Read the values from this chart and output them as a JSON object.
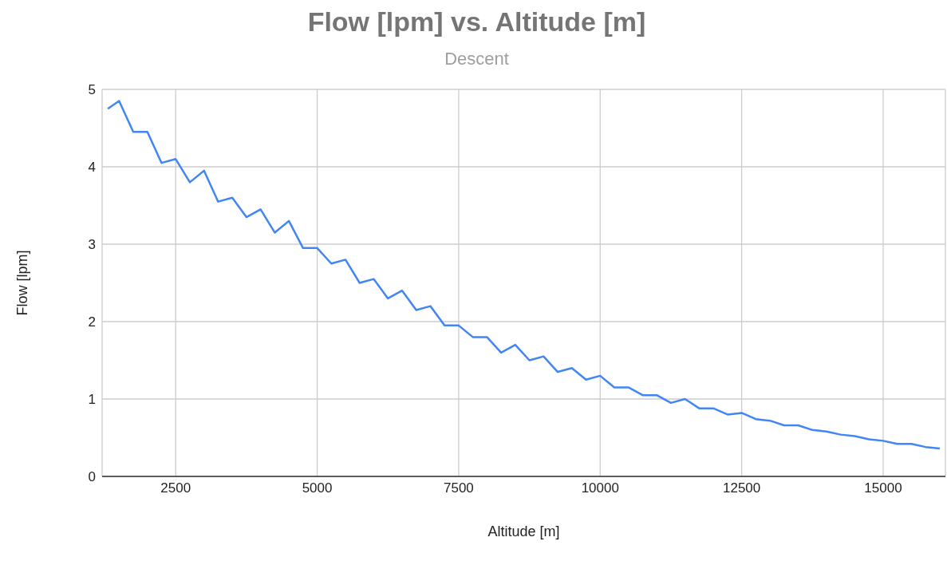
{
  "chart_data": {
    "type": "line",
    "title": "Flow [lpm] vs. Altitude [m]",
    "subtitle": "Descent",
    "xlabel": "Altitude [m]",
    "ylabel": "Flow [lpm]",
    "x": [
      1300,
      1500,
      1750,
      2000,
      2250,
      2500,
      2750,
      3000,
      3250,
      3500,
      3750,
      4000,
      4250,
      4500,
      4750,
      5000,
      5250,
      5500,
      5750,
      6000,
      6250,
      6500,
      6750,
      7000,
      7250,
      7500,
      7750,
      8000,
      8250,
      8500,
      8750,
      9000,
      9250,
      9500,
      9750,
      10000,
      10250,
      10500,
      10750,
      11000,
      11250,
      11500,
      11750,
      12000,
      12250,
      12500,
      12750,
      13000,
      13250,
      13500,
      13750,
      14000,
      14250,
      14500,
      14750,
      15000,
      15250,
      15500,
      15750,
      16000
    ],
    "series": [
      {
        "color": "#4285f4",
        "values": [
          4.75,
          4.85,
          4.45,
          4.45,
          4.05,
          4.1,
          3.8,
          3.95,
          3.55,
          3.6,
          3.35,
          3.45,
          3.15,
          3.3,
          2.95,
          2.95,
          2.75,
          2.8,
          2.5,
          2.55,
          2.3,
          2.4,
          2.15,
          2.2,
          1.95,
          1.95,
          1.8,
          1.8,
          1.6,
          1.7,
          1.5,
          1.55,
          1.35,
          1.4,
          1.25,
          1.3,
          1.15,
          1.15,
          1.05,
          1.05,
          0.95,
          1.0,
          0.88,
          0.88,
          0.8,
          0.82,
          0.74,
          0.72,
          0.66,
          0.66,
          0.6,
          0.58,
          0.54,
          0.52,
          0.48,
          0.46,
          0.42,
          0.42,
          0.38,
          0.36
        ]
      }
    ],
    "xlim": [
      1200,
      16100
    ],
    "xticks": [
      2500,
      5000,
      7500,
      10000,
      12500,
      15000
    ],
    "ylim": [
      0,
      5
    ],
    "yticks": [
      0,
      1,
      2,
      3,
      4,
      5
    ],
    "grid": true,
    "legend": false,
    "marker": "none",
    "line_style": "solid"
  }
}
